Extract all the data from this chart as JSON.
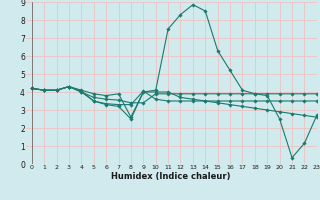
{
  "xlabel": "Humidex (Indice chaleur)",
  "ylabel": "",
  "background_color": "#d0eaed",
  "grid_color": "#e8c8c8",
  "line_color": "#1a7a6e",
  "xlim": [
    -0.5,
    23
  ],
  "ylim": [
    0,
    9
  ],
  "xticks": [
    0,
    1,
    2,
    3,
    4,
    5,
    6,
    7,
    8,
    9,
    10,
    11,
    12,
    13,
    14,
    15,
    16,
    17,
    18,
    19,
    20,
    21,
    22,
    23
  ],
  "yticks": [
    0,
    1,
    2,
    3,
    4,
    5,
    6,
    7,
    8,
    9
  ],
  "series": [
    [
      4.2,
      4.1,
      4.1,
      4.3,
      4.1,
      3.9,
      3.8,
      3.9,
      2.6,
      4.0,
      4.0,
      4.0,
      3.7,
      3.6,
      3.5,
      3.4,
      3.3,
      3.2,
      3.1,
      3.0,
      2.9,
      2.8,
      2.7,
      2.6
    ],
    [
      4.2,
      4.1,
      4.1,
      4.3,
      4.05,
      3.5,
      3.3,
      3.2,
      2.5,
      4.0,
      4.1,
      7.5,
      8.3,
      8.85,
      8.5,
      6.3,
      5.2,
      4.1,
      3.9,
      3.8,
      2.5,
      0.35,
      1.15,
      2.7
    ],
    [
      4.2,
      4.1,
      4.1,
      4.3,
      4.0,
      3.5,
      3.35,
      3.3,
      3.3,
      4.05,
      3.6,
      3.5,
      3.5,
      3.5,
      3.5,
      3.5,
      3.5,
      3.5,
      3.5,
      3.5,
      3.5,
      3.5,
      3.5,
      3.5
    ],
    [
      4.2,
      4.1,
      4.1,
      4.3,
      4.0,
      3.7,
      3.6,
      3.55,
      3.4,
      3.4,
      3.9,
      3.9,
      3.9,
      3.9,
      3.9,
      3.9,
      3.9,
      3.9,
      3.9,
      3.9,
      3.9,
      3.9,
      3.9,
      3.9
    ]
  ]
}
